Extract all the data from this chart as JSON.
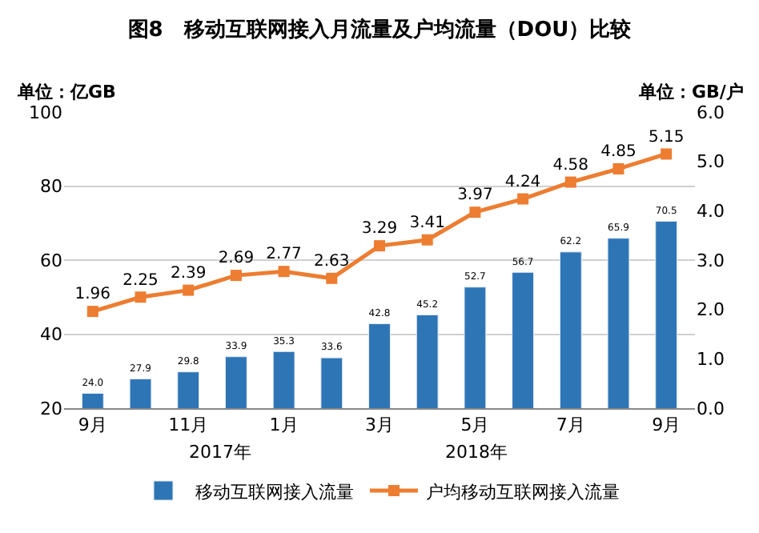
{
  "chart_data": {
    "type": "bar",
    "title": "图8　移动互联网接入月流量及户均流量（DOU）比较",
    "ylabel": "单位：亿GB",
    "y2label": "单位：GB/户",
    "categories": [
      "9月",
      null,
      "11月",
      null,
      "1月",
      null,
      "3月",
      null,
      "5月",
      null,
      "7月",
      null,
      "9月"
    ],
    "series": [
      {
        "name": "移动互联网接入流量",
        "color": "#2e75b6",
        "values": [
          24.0,
          27.9,
          29.8,
          33.9,
          35.3,
          33.6,
          42.8,
          45.2,
          52.7,
          56.7,
          62.2,
          65.9,
          70.5
        ],
        "value_labels": [
          "24.0",
          "27.9",
          "29.8",
          "33.9",
          "35.3",
          "33.6",
          "42.8",
          "45.2",
          "52.7",
          "56.7",
          "62.2",
          "65.9",
          "70.5"
        ]
      },
      {
        "name": "户均移动互联网接入流量",
        "type": "line",
        "axis": "y2",
        "color": "#ed7d31",
        "marker": "square",
        "values": [
          1.96,
          2.25,
          2.39,
          2.69,
          2.77,
          2.63,
          3.29,
          3.41,
          3.97,
          4.24,
          4.58,
          4.85,
          5.15
        ],
        "value_labels": [
          "1.96",
          "2.25",
          "2.39",
          "2.69",
          "2.77",
          "2.63",
          "3.29",
          "3.41",
          "3.97",
          "4.24",
          "4.58",
          "4.85",
          "5.15"
        ]
      }
    ],
    "ylim": [
      20,
      100
    ],
    "yticks": [
      20,
      40,
      60,
      80,
      100
    ],
    "y2lim": [
      0,
      6
    ],
    "y2ticks": [
      {
        "value": 0,
        "label": "0.0"
      },
      {
        "value": 1,
        "label": "1.0"
      },
      {
        "value": 2,
        "label": "2.0"
      },
      {
        "value": 3,
        "label": "3.0"
      },
      {
        "value": 4,
        "label": "4.0"
      },
      {
        "value": 5,
        "label": "5.0"
      },
      {
        "value": 6,
        "label": "6.0"
      }
    ],
    "annotations": [
      "2017年",
      "2018年"
    ],
    "grid": "y",
    "legend": "bottom"
  }
}
